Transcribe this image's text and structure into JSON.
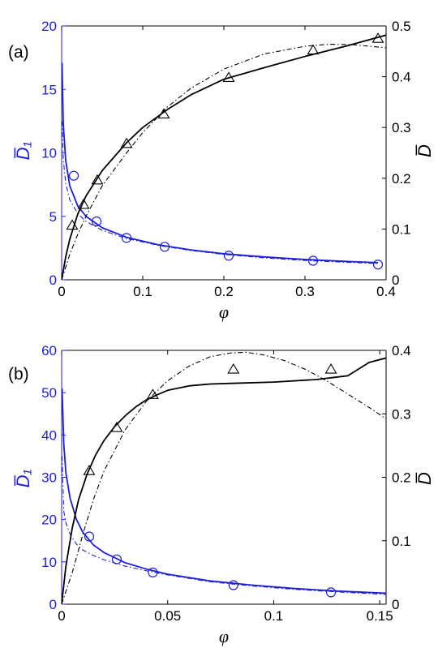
{
  "colors": {
    "left_axis": "#1f1fd6",
    "right_axis": "#000000",
    "blue_series": "#1f1fd6",
    "black_series": "#000000"
  },
  "chart_data": [
    {
      "type": "line",
      "panel_label": "(a)",
      "xlabel": "φ",
      "ylabel_left": "D̅₁",
      "ylabel_right": "D̅",
      "xlim": [
        0,
        0.4
      ],
      "ylim_left": [
        0,
        20
      ],
      "ylim_right": [
        0,
        0.5
      ],
      "xticks": [
        "0",
        "0.1",
        "0.2",
        "0.3",
        "0.4"
      ],
      "yticks_left": [
        "0",
        "5",
        "10",
        "15",
        "20"
      ],
      "yticks_right": [
        "0",
        "0.1",
        "0.2",
        "0.3",
        "0.4",
        "0.5"
      ],
      "series": [
        {
          "axis": "left",
          "style": "solid",
          "color": "#1f1fd6",
          "x": [
            0.0005,
            0.002,
            0.005,
            0.01,
            0.02,
            0.03,
            0.05,
            0.08,
            0.12,
            0.16,
            0.2,
            0.25,
            0.3,
            0.35,
            0.39
          ],
          "y": [
            17.1,
            12.3,
            9.4,
            7.4,
            5.8,
            5.0,
            4.1,
            3.35,
            2.75,
            2.35,
            2.05,
            1.8,
            1.6,
            1.45,
            1.35
          ]
        },
        {
          "axis": "left",
          "style": "dash-dot",
          "color": "#1f1fd6",
          "x": [
            0.0005,
            0.002,
            0.005,
            0.01,
            0.02,
            0.03,
            0.05,
            0.08,
            0.12,
            0.16,
            0.2,
            0.25,
            0.3,
            0.35,
            0.39
          ],
          "y": [
            12.5,
            9.5,
            7.6,
            6.3,
            5.2,
            4.6,
            3.9,
            3.25,
            2.7,
            2.3,
            2.0,
            1.72,
            1.52,
            1.38,
            1.28
          ]
        },
        {
          "axis": "left",
          "style": "markers",
          "marker": "circle",
          "color": "#1f1fd6",
          "x": [
            0.015,
            0.043,
            0.08,
            0.127,
            0.206,
            0.31,
            0.39
          ],
          "y": [
            8.2,
            4.6,
            3.3,
            2.6,
            1.9,
            1.5,
            1.2
          ]
        },
        {
          "axis": "right",
          "style": "solid",
          "color": "#000000",
          "x": [
            0,
            0.005,
            0.01,
            0.02,
            0.03,
            0.05,
            0.08,
            0.1,
            0.13,
            0.16,
            0.2,
            0.25,
            0.3,
            0.35,
            0.4
          ],
          "y": [
            0,
            0.045,
            0.08,
            0.13,
            0.165,
            0.215,
            0.27,
            0.3,
            0.335,
            0.365,
            0.395,
            0.418,
            0.44,
            0.46,
            0.482
          ]
        },
        {
          "axis": "right",
          "style": "dash-dot",
          "color": "#000000",
          "x": [
            0,
            0.01,
            0.02,
            0.03,
            0.05,
            0.08,
            0.1,
            0.13,
            0.16,
            0.2,
            0.25,
            0.3,
            0.33,
            0.36,
            0.4
          ],
          "y": [
            0,
            0.05,
            0.09,
            0.125,
            0.185,
            0.25,
            0.29,
            0.34,
            0.378,
            0.415,
            0.445,
            0.46,
            0.464,
            0.463,
            0.457
          ]
        },
        {
          "axis": "right",
          "style": "markers",
          "marker": "triangle",
          "color": "#000000",
          "x": [
            0.013,
            0.027,
            0.044,
            0.08,
            0.126,
            0.206,
            0.31,
            0.39
          ],
          "y": [
            0.107,
            0.148,
            0.196,
            0.268,
            0.326,
            0.398,
            0.452,
            0.475
          ]
        }
      ]
    },
    {
      "type": "line",
      "panel_label": "(b)",
      "xlabel": "φ",
      "ylabel_left": "D̅₁",
      "ylabel_right": "D̅",
      "xlim": [
        0,
        0.153
      ],
      "ylim_left": [
        0,
        60
      ],
      "ylim_right": [
        0,
        0.4
      ],
      "xticks": [
        "0",
        "0.05",
        "0.1",
        "0.15"
      ],
      "xtick_values": [
        0,
        0.05,
        0.1,
        0.15
      ],
      "yticks_left": [
        "0",
        "10",
        "20",
        "30",
        "40",
        "50",
        "60"
      ],
      "yticks_right": [
        "0",
        "0.1",
        "0.2",
        "0.3",
        "0.4"
      ],
      "series": [
        {
          "axis": "left",
          "style": "solid",
          "color": "#1f1fd6",
          "x": [
            0.0002,
            0.001,
            0.002,
            0.004,
            0.007,
            0.01,
            0.015,
            0.02,
            0.03,
            0.04,
            0.05,
            0.07,
            0.09,
            0.11,
            0.13,
            0.153
          ],
          "y": [
            51,
            38,
            31,
            25,
            20,
            17,
            14,
            12.2,
            9.8,
            8.3,
            7.1,
            5.5,
            4.5,
            3.7,
            3.1,
            2.6
          ]
        },
        {
          "axis": "left",
          "style": "dash-dot",
          "color": "#1f1fd6",
          "x": [
            0.0002,
            0.001,
            0.002,
            0.004,
            0.007,
            0.01,
            0.015,
            0.02,
            0.03,
            0.04,
            0.05,
            0.07,
            0.09,
            0.11,
            0.13,
            0.153
          ],
          "y": [
            35,
            22,
            19.2,
            16.5,
            14.2,
            12.8,
            11.5,
            10.5,
            9.0,
            7.9,
            6.9,
            5.3,
            4.3,
            3.5,
            2.9,
            2.3
          ]
        },
        {
          "axis": "left",
          "style": "markers",
          "marker": "circle",
          "color": "#1f1fd6",
          "x": [
            0.013,
            0.026,
            0.043,
            0.081,
            0.127
          ],
          "y": [
            16.0,
            10.6,
            7.5,
            4.5,
            2.8
          ]
        },
        {
          "axis": "right",
          "style": "solid",
          "color": "#000000",
          "x": [
            0,
            0.002,
            0.005,
            0.008,
            0.012,
            0.016,
            0.02,
            0.025,
            0.03,
            0.035,
            0.04,
            0.045,
            0.05,
            0.06,
            0.07,
            0.08,
            0.1,
            0.12,
            0.135,
            0.145,
            0.153
          ],
          "y": [
            0,
            0.06,
            0.12,
            0.165,
            0.205,
            0.235,
            0.258,
            0.28,
            0.297,
            0.311,
            0.322,
            0.33,
            0.337,
            0.344,
            0.347,
            0.348,
            0.35,
            0.354,
            0.36,
            0.381,
            0.388
          ]
        },
        {
          "axis": "right",
          "style": "dash-dot",
          "color": "#000000",
          "x": [
            0,
            0.005,
            0.01,
            0.015,
            0.02,
            0.03,
            0.04,
            0.05,
            0.06,
            0.07,
            0.08,
            0.087,
            0.095,
            0.105,
            0.115,
            0.125,
            0.135,
            0.145,
            0.153
          ],
          "y": [
            0,
            0.05,
            0.11,
            0.165,
            0.21,
            0.275,
            0.32,
            0.352,
            0.375,
            0.39,
            0.396,
            0.397,
            0.393,
            0.384,
            0.37,
            0.352,
            0.331,
            0.31,
            0.292
          ]
        },
        {
          "axis": "right",
          "style": "markers",
          "marker": "triangle",
          "color": "#000000",
          "x": [
            0.013,
            0.026,
            0.043,
            0.081,
            0.127
          ],
          "y": [
            0.21,
            0.278,
            0.33,
            0.37,
            0.37
          ]
        }
      ]
    }
  ]
}
